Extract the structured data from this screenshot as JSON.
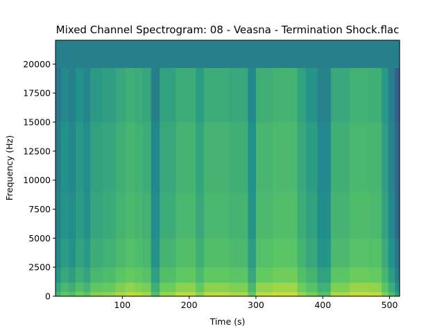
{
  "chart_data": {
    "type": "heatmap",
    "title": "Mixed Channel Spectrogram: 08 - Veasna - Termination Shock.flac",
    "xlabel": "Time (s)",
    "ylabel": "Frequency (Hz)",
    "xlim": [
      0,
      515
    ],
    "ylim": [
      0,
      22050
    ],
    "x_ticks": [
      100,
      200,
      300,
      400,
      500
    ],
    "y_ticks": [
      0,
      2500,
      5000,
      7500,
      10000,
      12500,
      15000,
      17500,
      20000
    ],
    "colormap": "viridis",
    "lowpass_cutoff_hz": 19700,
    "time_segments": [
      {
        "start": 0,
        "end": 8,
        "level": 0.42
      },
      {
        "start": 8,
        "end": 20,
        "level": 0.5
      },
      {
        "start": 20,
        "end": 30,
        "level": 0.46
      },
      {
        "start": 30,
        "end": 42,
        "level": 0.53
      },
      {
        "start": 42,
        "end": 52,
        "level": 0.48
      },
      {
        "start": 52,
        "end": 70,
        "level": 0.57
      },
      {
        "start": 70,
        "end": 90,
        "level": 0.59
      },
      {
        "start": 90,
        "end": 105,
        "level": 0.63
      },
      {
        "start": 105,
        "end": 118,
        "level": 0.66
      },
      {
        "start": 118,
        "end": 130,
        "level": 0.64
      },
      {
        "start": 130,
        "end": 143,
        "level": 0.62
      },
      {
        "start": 143,
        "end": 156,
        "level": 0.46
      },
      {
        "start": 156,
        "end": 180,
        "level": 0.6
      },
      {
        "start": 180,
        "end": 210,
        "level": 0.65
      },
      {
        "start": 210,
        "end": 222,
        "level": 0.58
      },
      {
        "start": 222,
        "end": 260,
        "level": 0.65
      },
      {
        "start": 260,
        "end": 288,
        "level": 0.63
      },
      {
        "start": 288,
        "end": 300,
        "level": 0.5
      },
      {
        "start": 300,
        "end": 325,
        "level": 0.66
      },
      {
        "start": 325,
        "end": 362,
        "level": 0.68
      },
      {
        "start": 362,
        "end": 375,
        "level": 0.6
      },
      {
        "start": 375,
        "end": 392,
        "level": 0.55
      },
      {
        "start": 392,
        "end": 412,
        "level": 0.47
      },
      {
        "start": 412,
        "end": 440,
        "level": 0.63
      },
      {
        "start": 440,
        "end": 470,
        "level": 0.67
      },
      {
        "start": 470,
        "end": 488,
        "level": 0.66
      },
      {
        "start": 488,
        "end": 498,
        "level": 0.56
      },
      {
        "start": 498,
        "end": 508,
        "level": 0.45
      },
      {
        "start": 508,
        "end": 515,
        "level": 0.33
      }
    ]
  }
}
